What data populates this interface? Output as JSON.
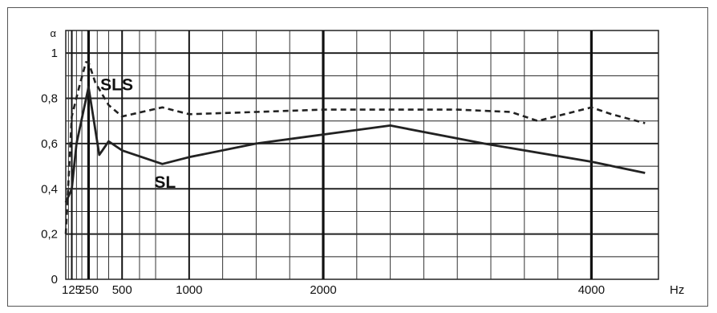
{
  "chart_data": {
    "type": "line",
    "title": "",
    "ylabel": "α",
    "xlabel": "Hz",
    "ylim": [
      0,
      1.1
    ],
    "xlim": [
      80,
      4500
    ],
    "x_scale": "linear",
    "grid": true,
    "y_ticks": [
      {
        "value": 0,
        "label": "0"
      },
      {
        "value": 0.2,
        "label": "0,2"
      },
      {
        "value": 0.4,
        "label": "0,4"
      },
      {
        "value": 0.6,
        "label": "0,6"
      },
      {
        "value": 0.8,
        "label": "0,8"
      },
      {
        "value": 1.0,
        "label": "1"
      }
    ],
    "x_ticks": [
      {
        "value": 125,
        "label": "125"
      },
      {
        "value": 250,
        "label": "250"
      },
      {
        "value": 500,
        "label": "500"
      },
      {
        "value": 1000,
        "label": "1000"
      },
      {
        "value": 2000,
        "label": "2000"
      },
      {
        "value": 4000,
        "label": "4000"
      }
    ],
    "series": [
      {
        "name": "SLS",
        "style": "dashed",
        "color": "#222222",
        "points": [
          [
            80,
            0.2
          ],
          [
            125,
            0.72
          ],
          [
            180,
            0.85
          ],
          [
            230,
            0.96
          ],
          [
            250,
            0.96
          ],
          [
            300,
            0.87
          ],
          [
            400,
            0.77
          ],
          [
            500,
            0.72
          ],
          [
            800,
            0.76
          ],
          [
            1000,
            0.73
          ],
          [
            1500,
            0.74
          ],
          [
            2000,
            0.75
          ],
          [
            3000,
            0.75
          ],
          [
            3400,
            0.74
          ],
          [
            3600,
            0.7
          ],
          [
            4000,
            0.76
          ],
          [
            4150,
            0.73
          ],
          [
            4400,
            0.69
          ]
        ]
      },
      {
        "name": "SL",
        "style": "solid",
        "color": "#222222",
        "points": [
          [
            80,
            0.34
          ],
          [
            125,
            0.4
          ],
          [
            160,
            0.6
          ],
          [
            250,
            0.85
          ],
          [
            330,
            0.55
          ],
          [
            400,
            0.61
          ],
          [
            500,
            0.57
          ],
          [
            800,
            0.51
          ],
          [
            1000,
            0.54
          ],
          [
            1500,
            0.6
          ],
          [
            2000,
            0.64
          ],
          [
            2500,
            0.68
          ],
          [
            3200,
            0.6
          ],
          [
            4000,
            0.52
          ],
          [
            4400,
            0.47
          ]
        ]
      }
    ],
    "annotations": [
      {
        "text": "SLS",
        "near": "SLS"
      },
      {
        "text": "SL",
        "near": "SL"
      }
    ]
  }
}
